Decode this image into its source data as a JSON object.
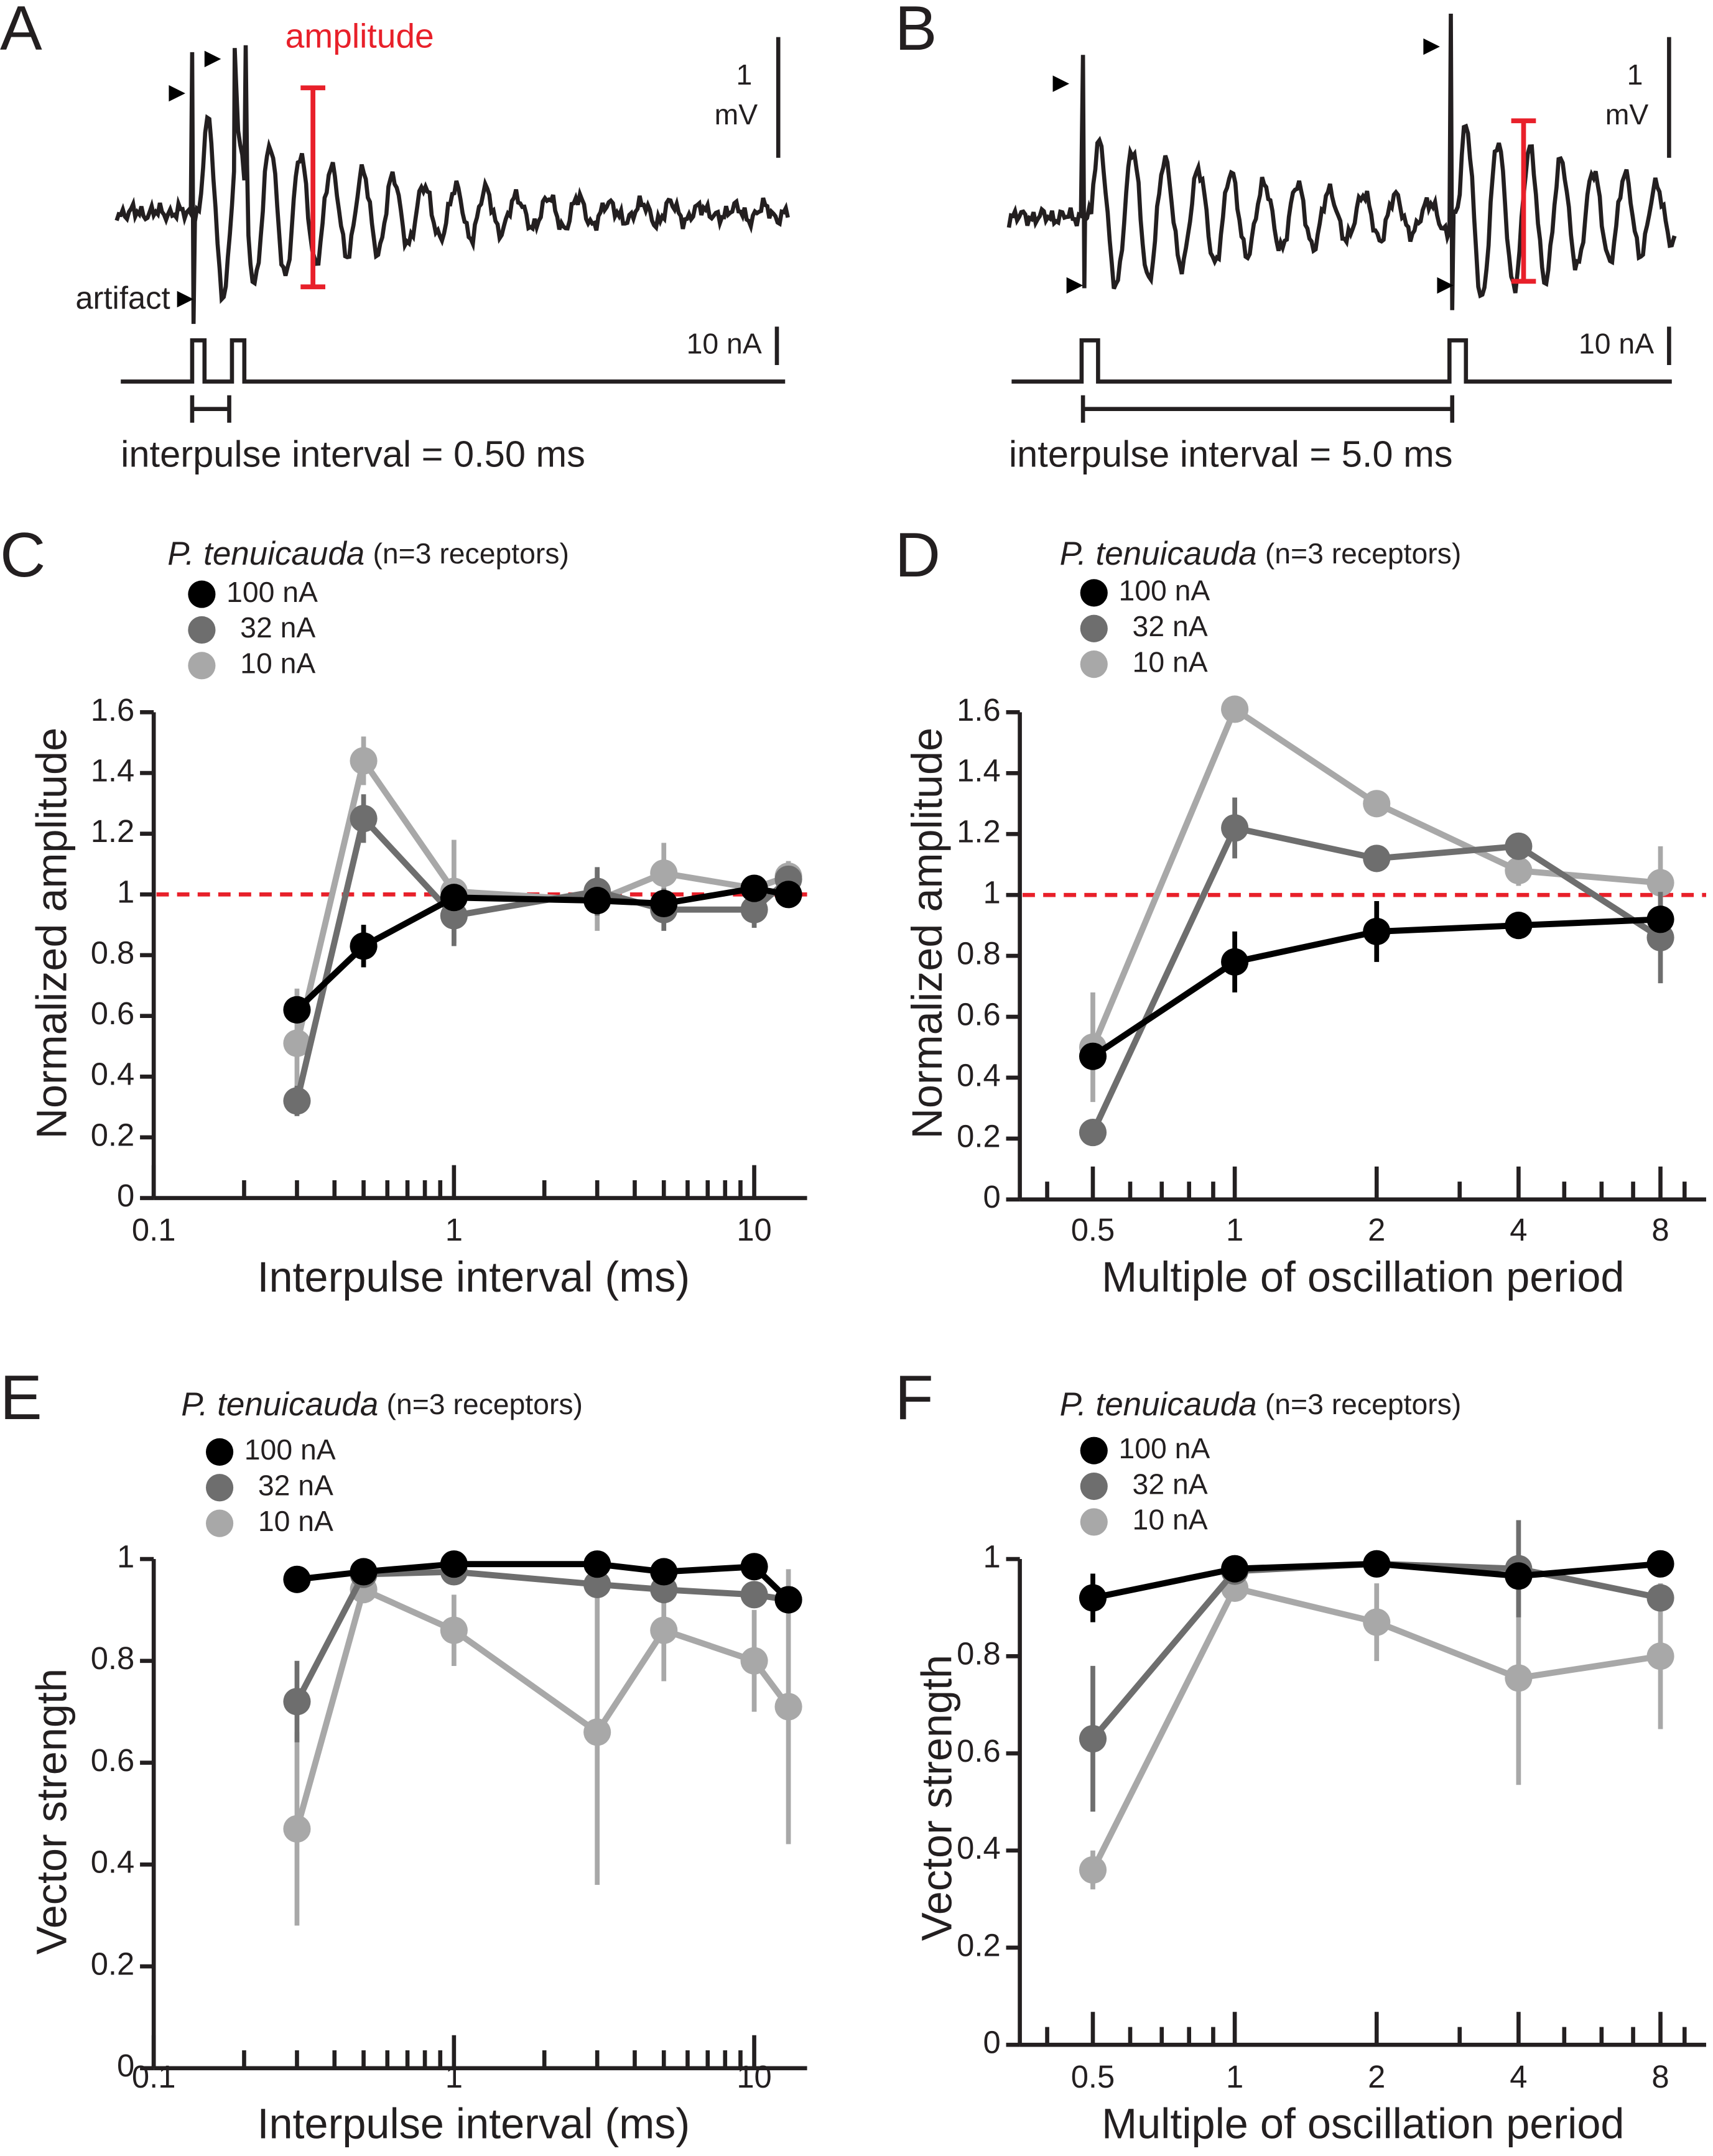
{
  "panels": [
    {
      "letter": "A",
      "amplitude_label": "amplitude",
      "scale_v": "1",
      "scale_v_unit": "mV",
      "artifact_label": "artifact",
      "scale_i": "10 nA",
      "interval_label": "interpulse interval = 0.50 ms"
    },
    {
      "letter": "B",
      "scale_v": "1",
      "scale_v_unit": "mV",
      "scale_i": "10 nA",
      "interval_label": "interpulse interval = 5.0 ms"
    }
  ],
  "chart_data": [
    {
      "type": "line",
      "panel": "C",
      "legend_title": "P. tenuicauda",
      "legend_note": "(n=3 receptors)",
      "x_label": "Interpulse interval (ms)",
      "y_label": "Normalized amplitude",
      "xscale": "log",
      "xlim": [
        0.1,
        15
      ],
      "xticks": [
        0.1,
        1,
        10
      ],
      "xminorticks": [
        0.2,
        0.3,
        0.4,
        0.5,
        0.6,
        0.7,
        0.8,
        0.9,
        2,
        3,
        4,
        5,
        6,
        7,
        8,
        9
      ],
      "ylim": [
        0,
        1.6
      ],
      "yticks": [
        0,
        0.2,
        0.4,
        0.6,
        0.8,
        1,
        1.2,
        1.4,
        1.6
      ],
      "refline": 1,
      "refline_color": "#e8202a",
      "x": [
        0.3,
        0.5,
        1,
        3,
        5,
        10,
        13
      ],
      "series": [
        {
          "name": "100 nA",
          "color": "#000000",
          "values": [
            0.62,
            0.83,
            0.99,
            0.98,
            0.97,
            1.02,
            1.0
          ],
          "errors": [
            null,
            0.07,
            null,
            null,
            null,
            null,
            0.04
          ]
        },
        {
          "name": "32 nA",
          "color": "#6e6e6e",
          "values": [
            0.32,
            1.25,
            0.93,
            1.01,
            0.95,
            0.95,
            1.05
          ],
          "errors": [
            0.05,
            0.08,
            0.1,
            0.08,
            0.07,
            0.06,
            null
          ]
        },
        {
          "name": "10 nA",
          "color": "#a8a8a8",
          "values": [
            0.51,
            1.44,
            1.01,
            0.98,
            1.07,
            1.02,
            1.06
          ],
          "errors": [
            0.18,
            0.08,
            0.17,
            0.1,
            0.1,
            0.03,
            0.05
          ]
        }
      ]
    },
    {
      "type": "line",
      "panel": "D",
      "legend_title": "P. tenuicauda",
      "legend_note": "(n=3 receptors)",
      "x_label": "Multiple of oscillation period",
      "y_label": "Normalized amplitude",
      "xscale": "log",
      "xlim": [
        0.35,
        10
      ],
      "xticks": [
        0.5,
        1,
        2,
        4,
        8
      ],
      "xminorticks": [
        0.4,
        0.6,
        0.7,
        0.8,
        0.9,
        3,
        5,
        6,
        7,
        9
      ],
      "ylim": [
        0,
        1.6
      ],
      "yticks": [
        0,
        0.2,
        0.4,
        0.6,
        0.8,
        1,
        1.2,
        1.4,
        1.6
      ],
      "refline": 1,
      "refline_color": "#e8202a",
      "x": [
        0.5,
        1,
        2,
        4,
        8
      ],
      "series": [
        {
          "name": "100 nA",
          "color": "#000000",
          "values": [
            0.47,
            0.78,
            0.88,
            0.9,
            0.92
          ],
          "errors": [
            0.04,
            0.1,
            0.1,
            null,
            0.04
          ]
        },
        {
          "name": "32 nA",
          "color": "#6e6e6e",
          "values": [
            0.22,
            1.22,
            1.12,
            1.16,
            0.86
          ],
          "errors": [
            null,
            0.1,
            null,
            null,
            0.15
          ]
        },
        {
          "name": "10 nA",
          "color": "#a8a8a8",
          "values": [
            0.5,
            1.61,
            1.3,
            1.08,
            1.04
          ],
          "errors": [
            0.18,
            null,
            null,
            0.05,
            0.12
          ]
        }
      ]
    },
    {
      "type": "line",
      "panel": "E",
      "legend_title": "P. tenuicauda",
      "legend_note": "(n=3 receptors)",
      "x_label": "Interpulse interval (ms)",
      "y_label": "Vector strength",
      "xscale": "log",
      "xlim": [
        0.1,
        15
      ],
      "xticks": [
        0.1,
        1,
        10
      ],
      "xminorticks": [
        0.2,
        0.3,
        0.4,
        0.5,
        0.6,
        0.7,
        0.8,
        0.9,
        2,
        3,
        4,
        5,
        6,
        7,
        8,
        9
      ],
      "ylim": [
        0,
        1
      ],
      "yticks": [
        0,
        0.2,
        0.4,
        0.6,
        0.8,
        1
      ],
      "x": [
        0.3,
        0.5,
        1,
        3,
        5,
        10,
        13
      ],
      "series": [
        {
          "name": "100 nA",
          "color": "#000000",
          "values": [
            0.96,
            0.975,
            0.99,
            0.99,
            0.975,
            0.985,
            0.92
          ],
          "errors": [
            null,
            null,
            null,
            null,
            null,
            null,
            null
          ]
        },
        {
          "name": "32 nA",
          "color": "#6e6e6e",
          "values": [
            0.72,
            0.97,
            0.975,
            0.95,
            0.94,
            0.93,
            0.92
          ],
          "errors": [
            0.08,
            null,
            null,
            null,
            null,
            null,
            null
          ]
        },
        {
          "name": "10 nA",
          "color": "#a8a8a8",
          "values": [
            0.47,
            0.94,
            0.86,
            0.66,
            0.86,
            0.8,
            0.71
          ],
          "errors": [
            0.19,
            null,
            0.07,
            0.3,
            0.1,
            0.1,
            0.27
          ]
        }
      ]
    },
    {
      "type": "line",
      "panel": "F",
      "legend_title": "P. tenuicauda",
      "legend_note": "(n=3 receptors)",
      "x_label": "Multiple of oscillation period",
      "y_label": "Vector strength",
      "xscale": "log",
      "xlim": [
        0.35,
        10
      ],
      "xticks": [
        0.5,
        1,
        2,
        4,
        8
      ],
      "xminorticks": [
        0.4,
        0.6,
        0.7,
        0.8,
        0.9,
        3,
        5,
        6,
        7,
        9
      ],
      "ylim": [
        0,
        1
      ],
      "yticks": [
        0,
        0.2,
        0.4,
        0.6,
        0.8,
        1
      ],
      "x": [
        0.5,
        1,
        2,
        4,
        8
      ],
      "series": [
        {
          "name": "100 nA",
          "color": "#000000",
          "values": [
            0.92,
            0.98,
            0.99,
            0.965,
            0.99
          ],
          "errors": [
            0.05,
            null,
            null,
            null,
            null
          ]
        },
        {
          "name": "32 nA",
          "color": "#6e6e6e",
          "values": [
            0.63,
            0.975,
            0.99,
            0.98,
            0.92
          ],
          "errors": [
            0.15,
            null,
            null,
            0.1,
            null
          ]
        },
        {
          "name": "10 nA",
          "color": "#a8a8a8",
          "values": [
            0.36,
            0.94,
            0.87,
            0.755,
            0.8
          ],
          "errors": [
            0.04,
            null,
            0.08,
            0.22,
            0.15
          ]
        }
      ]
    }
  ]
}
